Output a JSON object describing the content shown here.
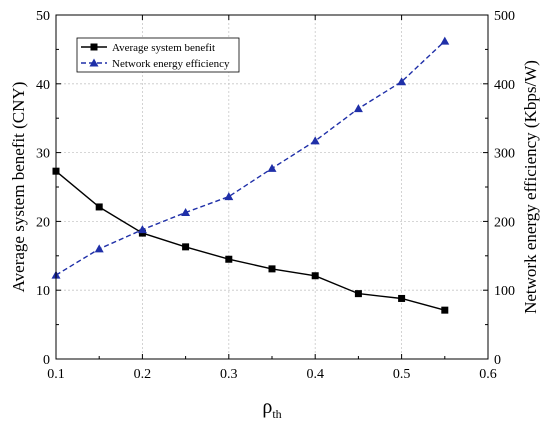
{
  "chart_data": {
    "type": "line",
    "title": "",
    "xlabel": "ρ",
    "xlabel_subscript": "th",
    "ylabel": "Average system benefit (CNY)",
    "y2label": "Network energy efficiency (Kbps/W)",
    "xlim": [
      0.1,
      0.6
    ],
    "ylim": [
      0,
      50
    ],
    "y2lim": [
      0,
      500
    ],
    "xticks": [
      "0.1",
      "0.2",
      "0.3",
      "0.4",
      "0.5",
      "0.6"
    ],
    "xtick_values": [
      0.1,
      0.2,
      0.3,
      0.4,
      0.5,
      0.6
    ],
    "yticks": [
      "0",
      "10",
      "20",
      "30",
      "40",
      "50"
    ],
    "ytick_values": [
      0,
      10,
      20,
      30,
      40,
      50
    ],
    "y2ticks": [
      "0",
      "100",
      "200",
      "300",
      "400",
      "500"
    ],
    "y2tick_values": [
      0,
      100,
      200,
      300,
      400,
      500
    ],
    "grid": true,
    "legend_position": "top-left",
    "x": [
      0.1,
      0.15,
      0.2,
      0.25,
      0.3,
      0.35,
      0.4,
      0.45,
      0.5,
      0.55
    ],
    "series": [
      {
        "name": "Average system benefit",
        "axis": "left",
        "color": "#000000",
        "line_style": "solid",
        "marker": "square",
        "values": [
          27.3,
          22.1,
          18.3,
          16.3,
          14.5,
          13.1,
          12.1,
          9.5,
          8.8,
          7.1
        ]
      },
      {
        "name": "Network energy efficiency",
        "axis": "right",
        "color": "#1f2fa8",
        "line_style": "dashed",
        "marker": "triangle",
        "values": [
          122,
          160,
          188,
          213,
          236,
          277,
          317,
          364,
          403,
          462
        ]
      }
    ]
  }
}
